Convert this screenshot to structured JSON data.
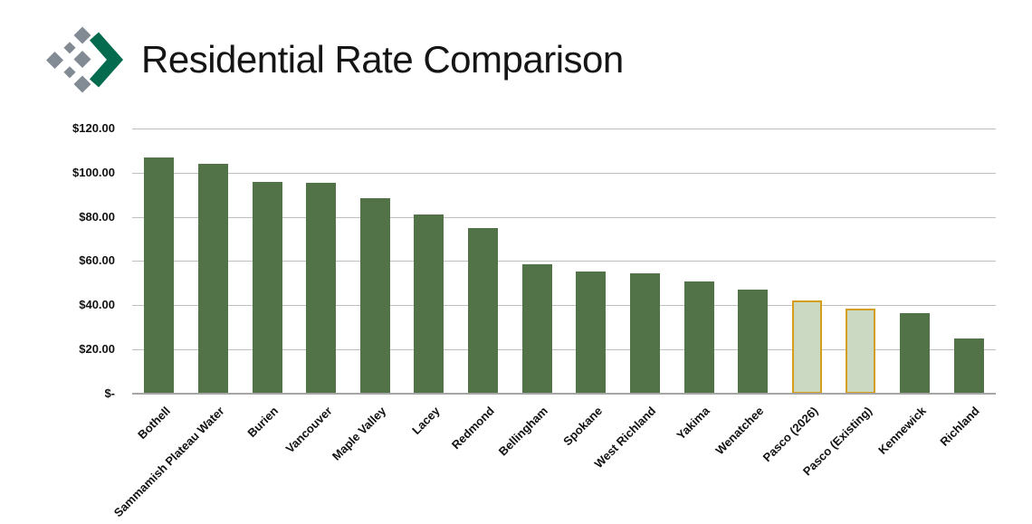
{
  "header": {
    "title": "Residential Rate Comparison",
    "logo": {
      "name": "diamond-chevron-logo",
      "diamond_color": "#828a94",
      "chevron_color": "#046b4e"
    }
  },
  "chart_data": {
    "type": "bar",
    "title": "Residential Rate Comparison",
    "categories": [
      "Bothell",
      "Sammamish Plateau Water",
      "Burien",
      "Vancouver",
      "Maple Valley",
      "Lacey",
      "Redmond",
      "Bellingham",
      "Spokane",
      "West Richland",
      "Yakima",
      "Wenatchee",
      "Pasco (2026)",
      "Pasco (Existing)",
      "Kennewick",
      "Richland"
    ],
    "values": [
      107,
      104,
      96,
      95.5,
      88.5,
      81,
      75,
      58.5,
      55,
      54.5,
      50.5,
      47,
      42,
      38.5,
      36.5,
      25
    ],
    "highlight_indices": [
      12,
      13
    ],
    "xlabel": "",
    "ylabel": "",
    "ylim": [
      0,
      120
    ],
    "ytick_step": 20,
    "ytick_labels": [
      "$-",
      "$20.00",
      "$40.00",
      "$60.00",
      "$80.00",
      "$100.00",
      "$120.00"
    ],
    "grid": "horizontal",
    "legend": "none",
    "bar_color": "#527347",
    "highlight_fill": "#cbd9c3",
    "highlight_border": "#d49e1b",
    "gridline_color": "#bfbfbf",
    "axis_line_color": "#a6a6a6",
    "label_color": "#111111"
  }
}
